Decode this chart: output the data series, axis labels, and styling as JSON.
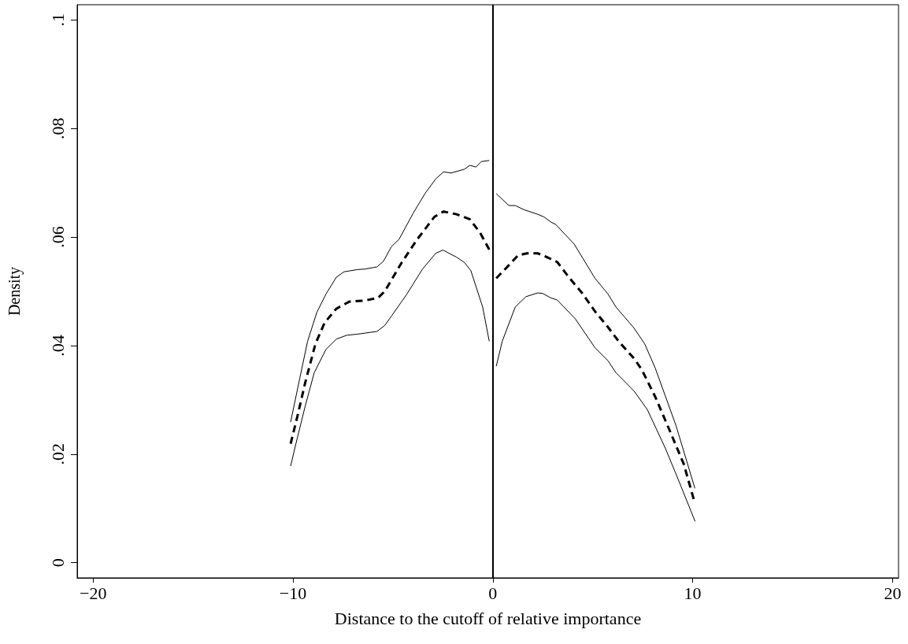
{
  "chart_data": {
    "type": "line",
    "xlabel": "Distance to the cutoff of relative importance",
    "ylabel": "Density",
    "xlim": [
      -20.8,
      20.3
    ],
    "xticks": [
      {
        "value": -20,
        "label": "−20"
      },
      {
        "value": -10,
        "label": "−10"
      },
      0,
      10,
      20
    ],
    "ylim": [
      -0.0028,
      0.1028
    ],
    "yticks": [
      0,
      {
        "value": 0.02,
        "label": ".02"
      },
      {
        "value": 0.04,
        "label": ".04"
      },
      {
        "value": 0.06,
        "label": ".06"
      },
      {
        "value": 0.08,
        "label": ".08"
      },
      {
        "value": 0.1,
        "label": ".1"
      }
    ],
    "grid": false,
    "marker": "none",
    "ref_lines": [
      {
        "axis": "x",
        "value": 0,
        "color": "#000000"
      }
    ],
    "series": [
      {
        "color": "#000000",
        "line_style": "solid",
        "x": [
          -10.12,
          -9.66,
          -9.27,
          -8.81,
          -8.35,
          -7.83,
          -7.44,
          -6.78,
          -6.39,
          -5.8,
          -5.48,
          -5.08,
          -4.69,
          -3.97,
          -3.38,
          -2.86,
          -2.47,
          -2.08,
          -1.42,
          -1.16,
          -0.84,
          -0.58,
          -0.18
        ],
        "values": [
          0.0259,
          0.034,
          0.0408,
          0.0461,
          0.0495,
          0.0526,
          0.0536,
          0.054,
          0.0541,
          0.0545,
          0.0555,
          0.0582,
          0.0596,
          0.0645,
          0.0681,
          0.0707,
          0.072,
          0.0718,
          0.0725,
          0.0732,
          0.0729,
          0.0739,
          0.0741
        ]
      },
      {
        "color": "#000000",
        "line_style": "dashed",
        "x": [
          -10.12,
          -9.79,
          -9.4,
          -8.88,
          -8.42,
          -7.83,
          -7.18,
          -6.39,
          -5.74,
          -5.41,
          -4.56,
          -3.78,
          -2.93,
          -2.47,
          -1.82,
          -1.16,
          -0.64,
          -0.18
        ],
        "values": [
          0.0219,
          0.0268,
          0.033,
          0.0403,
          0.0442,
          0.0468,
          0.0481,
          0.0483,
          0.0488,
          0.05,
          0.0553,
          0.0596,
          0.0637,
          0.0647,
          0.0642,
          0.0633,
          0.0608,
          0.0577
        ]
      },
      {
        "color": "#000000",
        "line_style": "solid",
        "x": [
          -10.12,
          -9.79,
          -9.4,
          -8.94,
          -8.35,
          -7.83,
          -7.31,
          -6.78,
          -5.8,
          -5.41,
          -5.08,
          -4.3,
          -3.52,
          -2.86,
          -2.5,
          -1.82,
          -1.42,
          -1.1,
          -0.51,
          -0.18
        ],
        "values": [
          0.0178,
          0.0229,
          0.0287,
          0.035,
          0.0393,
          0.0412,
          0.0419,
          0.0421,
          0.0426,
          0.0437,
          0.0454,
          0.0495,
          0.0541,
          0.057,
          0.0576,
          0.0563,
          0.0553,
          0.0538,
          0.0471,
          0.0408
        ]
      },
      {
        "color": "#000000",
        "line_style": "solid",
        "x": [
          0.17,
          0.8,
          1.12,
          1.58,
          2.24,
          2.56,
          2.89,
          3.15,
          4.07,
          5.11,
          5.76,
          6.16,
          7.07,
          7.6,
          8.12,
          9.16,
          10.11
        ],
        "values": [
          0.068,
          0.0658,
          0.0658,
          0.065,
          0.0642,
          0.0637,
          0.0628,
          0.0623,
          0.0587,
          0.0524,
          0.0495,
          0.0471,
          0.0432,
          0.0403,
          0.0359,
          0.0253,
          0.0137
        ]
      },
      {
        "color": "#000000",
        "line_style": "dashed",
        "x": [
          0.17,
          0.8,
          1.25,
          1.71,
          2.24,
          2.76,
          3.22,
          3.8,
          4.46,
          5.11,
          5.76,
          6.29,
          7.07,
          7.46,
          8.12,
          8.9,
          9.56,
          10.08
        ],
        "values": [
          0.0524,
          0.0548,
          0.0566,
          0.057,
          0.057,
          0.0562,
          0.0554,
          0.0526,
          0.0497,
          0.0463,
          0.0434,
          0.0408,
          0.0376,
          0.0355,
          0.0306,
          0.0239,
          0.0181,
          0.0113
        ]
      },
      {
        "color": "#000000",
        "line_style": "solid",
        "x": [
          0.17,
          0.47,
          1.12,
          1.65,
          2.24,
          2.5,
          2.89,
          3.22,
          4.13,
          5.11,
          5.76,
          6.16,
          7.07,
          7.73,
          8.64,
          9.29,
          10.12
        ],
        "values": [
          0.0362,
          0.0408,
          0.0471,
          0.049,
          0.0497,
          0.0496,
          0.0488,
          0.0484,
          0.0449,
          0.0396,
          0.0372,
          0.035,
          0.0316,
          0.0282,
          0.021,
          0.0152,
          0.0076
        ]
      }
    ]
  }
}
